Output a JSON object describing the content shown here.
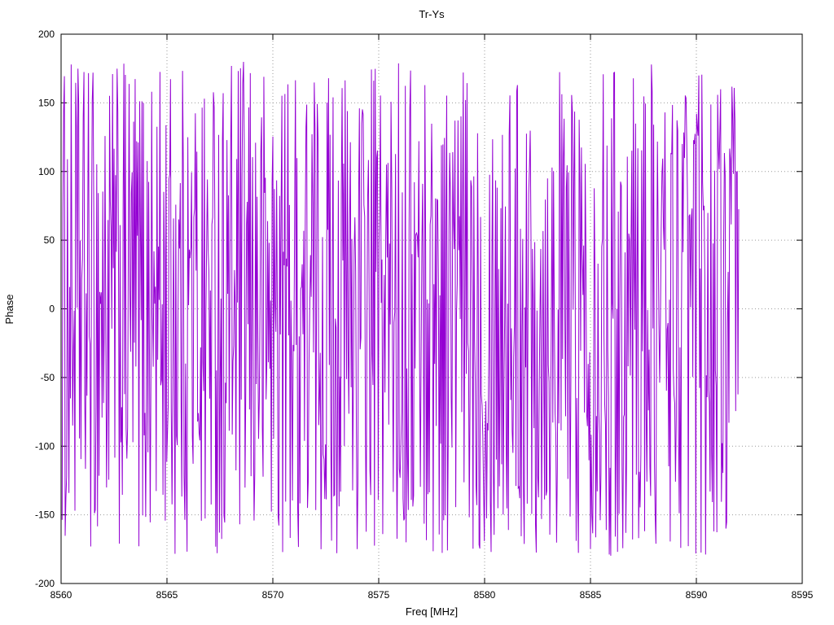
{
  "chart_data": {
    "type": "line",
    "title": "Tr-Ys",
    "xlabel": "Freq [MHz]",
    "ylabel": "Phase",
    "xlim": [
      8560,
      8595
    ],
    "ylim": [
      -200,
      200
    ],
    "x_ticks": [
      8560,
      8565,
      8570,
      8575,
      8580,
      8585,
      8590,
      8595
    ],
    "y_ticks": [
      -200,
      -150,
      -100,
      -50,
      0,
      50,
      100,
      150,
      200
    ],
    "grid": true,
    "grid_style": "dotted",
    "grid_color": "#9a9a9a",
    "frame_color": "#000000",
    "legend": "none",
    "series": [
      {
        "name": "Tr-Ys",
        "color": "#9400d3",
        "description": "wrapped interferometric phase, uniform noise between -180 and 180 degrees",
        "x_start": 8560.05,
        "x_end": 8592.0,
        "points": 900,
        "y_min": -180,
        "y_max": 180,
        "seed": 1234
      }
    ]
  }
}
